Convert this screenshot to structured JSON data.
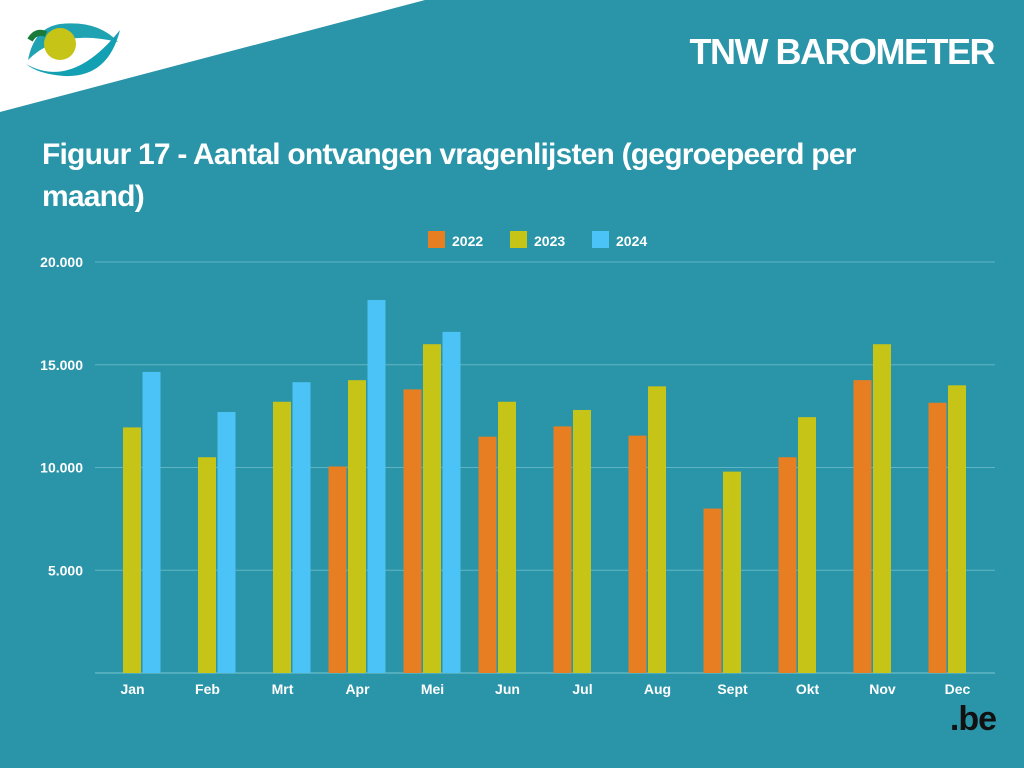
{
  "header": {
    "brand": "TNW BAROMETER"
  },
  "title": "Figuur 17 - Aantal ontvangen vragenlijsten (gegroepeerd per maand)",
  "logo": {
    "text": ".be"
  },
  "colors": {
    "background": "#2a95a8",
    "series_2022": "#e87e22",
    "series_2023": "#c5c417",
    "series_2024": "#4cc3f6",
    "grid": "#5fb5c4"
  },
  "chart_data": {
    "type": "bar",
    "title": "Figuur 17 - Aantal ontvangen vragenlijsten (gegroepeerd per maand)",
    "xlabel": "",
    "ylabel": "",
    "ylim": [
      0,
      20000
    ],
    "yticks": [
      {
        "value": 5000,
        "label": "5.000"
      },
      {
        "value": 10000,
        "label": "10.000"
      },
      {
        "value": 15000,
        "label": "15.000"
      },
      {
        "value": 20000,
        "label": "20.000"
      }
    ],
    "categories": [
      "Jan",
      "Feb",
      "Mrt",
      "Apr",
      "Mei",
      "Jun",
      "Jul",
      "Aug",
      "Sept",
      "Okt",
      "Nov",
      "Dec"
    ],
    "legend_position": "top-center",
    "series": [
      {
        "name": "2022",
        "color": "#e87e22",
        "values": [
          null,
          null,
          null,
          10050,
          13800,
          11500,
          12000,
          11550,
          8000,
          10500,
          14250,
          13150
        ]
      },
      {
        "name": "2023",
        "color": "#c5c417",
        "values": [
          11950,
          10500,
          13200,
          14250,
          16000,
          13200,
          12800,
          13950,
          9800,
          12450,
          16000,
          14000
        ]
      },
      {
        "name": "2024",
        "color": "#4cc3f6",
        "values": [
          14650,
          12700,
          14150,
          18150,
          16600,
          null,
          null,
          null,
          null,
          null,
          null,
          null
        ]
      }
    ]
  }
}
